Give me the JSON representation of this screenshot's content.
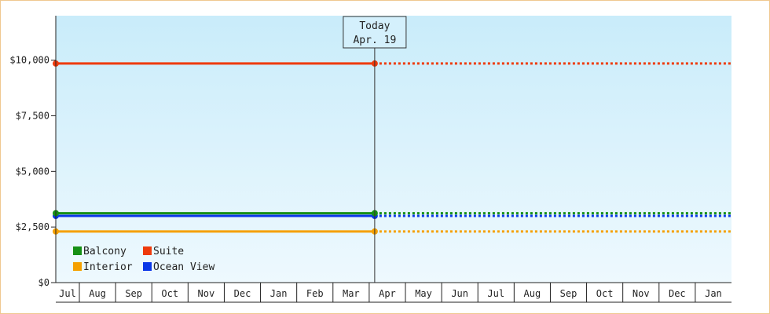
{
  "chart_data": {
    "type": "line",
    "title": "",
    "xlabel": "",
    "ylabel": "",
    "ylim": [
      0,
      12000
    ],
    "y_ticks": [
      {
        "value": 0,
        "label": "$0"
      },
      {
        "value": 2500,
        "label": "$2,500"
      },
      {
        "value": 5000,
        "label": "$5,000"
      },
      {
        "value": 7500,
        "label": "$7,500"
      },
      {
        "value": 10000,
        "label": "$10,000"
      }
    ],
    "x_months": [
      "Jul",
      "Aug",
      "Sep",
      "Oct",
      "Nov",
      "Dec",
      "Jan",
      "Feb",
      "Mar",
      "Apr",
      "May",
      "Jun",
      "Jul",
      "Aug",
      "Sep",
      "Oct",
      "Nov",
      "Dec",
      "Jan"
    ],
    "today": {
      "line1": "Today",
      "line2": "Apr. 19",
      "month_index": 9
    },
    "series": [
      {
        "name": "Balcony",
        "color": "#169016",
        "value": 3120
      },
      {
        "name": "Suite",
        "color": "#ee3a0c",
        "value": 9850
      },
      {
        "name": "Interior",
        "color": "#f5a000",
        "value": 2300
      },
      {
        "name": "Ocean View",
        "color": "#0a37e8",
        "value": 3000
      }
    ],
    "grid": false,
    "legend_position": "bottom-left"
  }
}
